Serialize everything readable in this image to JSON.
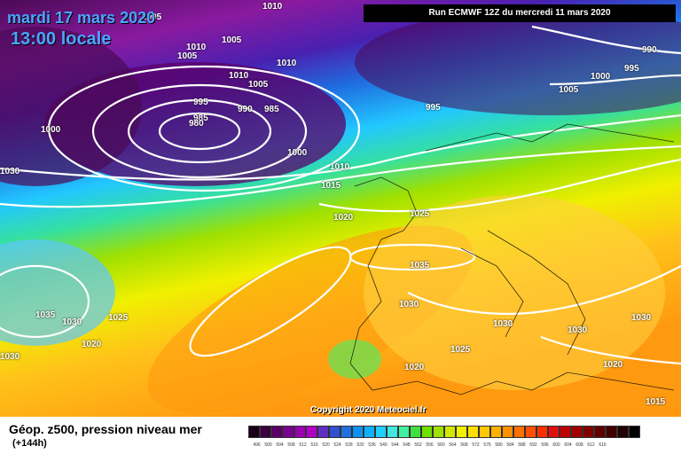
{
  "header": {
    "date": "mardi 17 mars 2020",
    "time": "13:00 locale",
    "run": "Run ECMWF 12Z du mercredi 11 mars 2020"
  },
  "copyright": "Copyright 2020 Meteociel.fr",
  "footer": {
    "title": "Géop. z500, pression niveau mer",
    "subtitle": "(+144h)"
  },
  "isobars": [
    "1005",
    "1010",
    "1010",
    "1005",
    "1005",
    "1010",
    "1005",
    "1010",
    "995",
    "990",
    "985",
    "985",
    "980",
    "1000",
    "995",
    "1000",
    "1005",
    "995",
    "990",
    "1000",
    "1010",
    "1015",
    "1020",
    "1025",
    "1035",
    "1030",
    "1035",
    "1030",
    "1025",
    "1020",
    "1030",
    "1030",
    "1030",
    "1025",
    "1020",
    "1020",
    "1015",
    "1030",
    "1030"
  ],
  "legend": {
    "colors": [
      "#1a001a",
      "#3a0040",
      "#5a0066",
      "#7a0090",
      "#9a00b0",
      "#b000c8",
      "#6030c0",
      "#3050d0",
      "#2070e0",
      "#1090f0",
      "#10b0ff",
      "#20d0ff",
      "#40e8e0",
      "#40f0a0",
      "#40e040",
      "#70e000",
      "#a0e000",
      "#d0e800",
      "#f0f000",
      "#ffe000",
      "#ffc800",
      "#ffb000",
      "#ff9000",
      "#ff7000",
      "#ff5000",
      "#ff3000",
      "#e01010",
      "#c00000",
      "#a00000",
      "#800000",
      "#600000",
      "#400000",
      "#200000",
      "#000000"
    ],
    "ticks": [
      "496",
      "500",
      "504",
      "508",
      "512",
      "516",
      "520",
      "524",
      "528",
      "532",
      "536",
      "540",
      "544",
      "548",
      "552",
      "556",
      "560",
      "564",
      "568",
      "572",
      "576",
      "580",
      "584",
      "588",
      "592",
      "596",
      "600",
      "604",
      "608",
      "612",
      "616"
    ]
  }
}
